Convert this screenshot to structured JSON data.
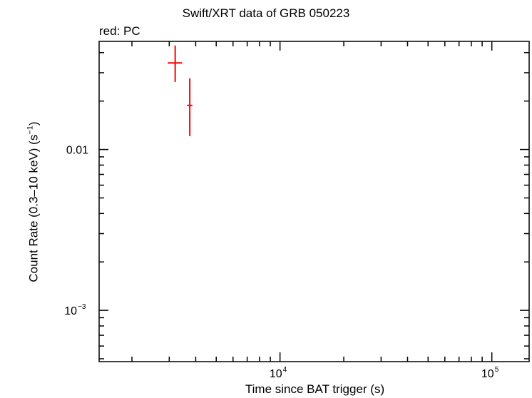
{
  "chart_data": {
    "type": "scatter",
    "title": "Swift/XRT data of GRB 050223",
    "subtitle": "red: PC",
    "xlabel": "Time since BAT trigger (s)",
    "ylabel": {
      "pre": "Count Rate (0.3–10 keV) (s",
      "sup": "−1",
      "post": ")"
    },
    "x_scale": "log",
    "y_scale": "log",
    "xlim": [
      1400,
      150000
    ],
    "ylim": [
      0.00048,
      0.047
    ],
    "x_ticks": [
      {
        "base": "10",
        "exp": "4",
        "value": 10000
      },
      {
        "base": "10",
        "exp": "5",
        "value": 100000
      }
    ],
    "y_ticks": [
      {
        "text": "0.01",
        "value": 0.01
      },
      {
        "base": "10",
        "exp": "−3",
        "value": 0.001
      }
    ],
    "series": [
      {
        "color": "#ff0000",
        "points": [
          {
            "x": 3200,
            "xerr_low": 250,
            "xerr_high": 250,
            "y": 0.0345,
            "y_low": 0.0263,
            "y_high": 0.0443
          },
          {
            "x": 3750,
            "xerr_low": 110,
            "xerr_high": 110,
            "y": 0.0188,
            "y_low": 0.0121,
            "y_high": 0.0277
          }
        ]
      }
    ]
  }
}
